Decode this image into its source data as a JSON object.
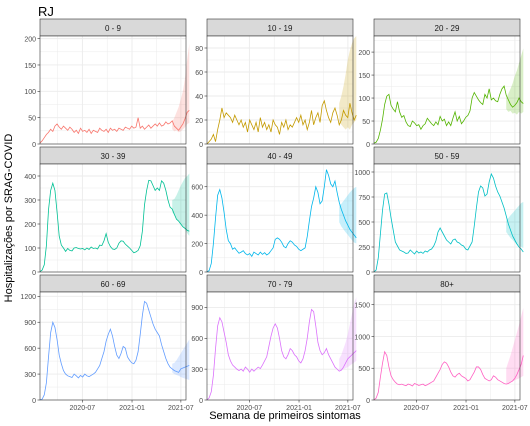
{
  "title": "RJ",
  "ylabel": "Hospitalizações por SRAG-COVID",
  "xlabel": "Semana de primeiros sintomas",
  "colors": {
    "panel_bg": "#ffffff",
    "panel_border": "#333333",
    "grid": "#ebebeb",
    "strip_bg": "#d9d9d9"
  },
  "chart_data": {
    "type": "line",
    "x_axis_ticks": [
      "2020-07",
      "2021-01",
      "2021-07"
    ],
    "x_range": [
      "2020-01-26",
      "2021-07-20"
    ],
    "nowcast_start": "2021-05-30",
    "panels": [
      {
        "label": "0 - 9",
        "color": "#F8766D",
        "ylim": [
          0,
          205
        ],
        "yticks": [
          0,
          50,
          100,
          150,
          200
        ],
        "values": [
          2,
          6,
          12,
          18,
          22,
          28,
          24,
          34,
          38,
          32,
          28,
          34,
          30,
          26,
          32,
          28,
          22,
          26,
          20,
          30,
          24,
          26,
          22,
          28,
          20,
          26,
          24,
          22,
          30,
          26,
          24,
          28,
          22,
          30,
          26,
          28,
          24,
          30,
          28,
          26,
          32,
          30,
          28,
          34,
          30,
          32,
          50,
          30,
          34,
          28,
          32,
          36,
          30,
          34,
          38,
          34,
          40,
          34,
          36,
          42,
          38,
          40,
          44,
          34,
          30,
          26,
          32,
          38,
          48,
          60,
          64
        ],
        "ci_lower": [
          28,
          24,
          26,
          22,
          24,
          28,
          32,
          38,
          40
        ],
        "ci_upper": [
          42,
          50,
          60,
          70,
          85,
          100,
          125,
          160,
          190
        ]
      },
      {
        "label": "10 - 19",
        "color": "#C49A00",
        "ylim": [
          0,
          90
        ],
        "yticks": [
          0,
          20,
          40,
          60,
          80
        ],
        "values": [
          0,
          2,
          4,
          8,
          2,
          12,
          20,
          30,
          22,
          26,
          24,
          22,
          18,
          24,
          20,
          16,
          20,
          14,
          18,
          10,
          20,
          16,
          12,
          18,
          10,
          22,
          14,
          18,
          12,
          16,
          10,
          20,
          16,
          14,
          8,
          18,
          14,
          20,
          12,
          16,
          14,
          18,
          22,
          18,
          24,
          16,
          20,
          12,
          18,
          28,
          16,
          22,
          26,
          18,
          32,
          36,
          28,
          22,
          18,
          26,
          30,
          24,
          16,
          20,
          28,
          24,
          22,
          34,
          26,
          20,
          24
        ],
        "ci_lower": [
          18,
          16,
          14,
          12,
          14,
          12,
          16,
          18,
          20
        ],
        "ci_upper": [
          34,
          40,
          48,
          58,
          70,
          78,
          84,
          88,
          90
        ]
      },
      {
        "label": "20 - 29",
        "color": "#53B400",
        "ylim": [
          0,
          235
        ],
        "yticks": [
          0,
          50,
          100,
          150,
          200
        ],
        "values": [
          2,
          4,
          12,
          30,
          54,
          86,
          104,
          108,
          84,
          76,
          70,
          92,
          70,
          58,
          62,
          48,
          40,
          38,
          50,
          46,
          40,
          42,
          32,
          40,
          44,
          56,
          50,
          44,
          40,
          48,
          42,
          60,
          50,
          54,
          40,
          48,
          40,
          56,
          70,
          50,
          60,
          44,
          50,
          58,
          62,
          72,
          100,
          112,
          104,
          96,
          90,
          86,
          108,
          100,
          120,
          96,
          100,
          94,
          92,
          108,
          120,
          126,
          106,
          96,
          86,
          80,
          84,
          90,
          100,
          92,
          88
        ],
        "ci_lower": [
          76,
          70,
          72,
          66,
          68,
          64,
          70,
          66,
          70
        ],
        "ci_upper": [
          100,
          110,
          120,
          132,
          148,
          160,
          176,
          192,
          208
        ]
      },
      {
        "label": "30 - 39",
        "color": "#00C094",
        "ylim": [
          0,
          450
        ],
        "yticks": [
          0,
          100,
          200,
          300,
          400
        ],
        "values": [
          2,
          8,
          30,
          110,
          260,
          340,
          370,
          340,
          250,
          150,
          112,
          100,
          86,
          98,
          90,
          88,
          100,
          102,
          98,
          96,
          98,
          92,
          100,
          94,
          104,
          98,
          100,
          96,
          112,
          110,
          130,
          160,
          124,
          106,
          96,
          94,
          100,
          120,
          130,
          128,
          116,
          108,
          100,
          90,
          80,
          84,
          90,
          110,
          170,
          280,
          340,
          382,
          380,
          360,
          340,
          350,
          340,
          380,
          370,
          340,
          300,
          270,
          262,
          240,
          220,
          212,
          200,
          188,
          182,
          174,
          170
        ],
        "ci_lower": [
          250,
          236,
          224,
          210,
          200,
          188,
          176,
          162,
          150
        ],
        "ci_upper": [
          300,
          304,
          320,
          340,
          360,
          376,
          392,
          400,
          410
        ]
      },
      {
        "label": "40 - 49",
        "color": "#00B6EB",
        "ylim": [
          0,
          760
        ],
        "yticks": [
          0,
          200,
          400,
          600
        ],
        "values": [
          2,
          10,
          60,
          200,
          380,
          540,
          580,
          520,
          420,
          300,
          220,
          200,
          160,
          170,
          150,
          132,
          140,
          150,
          130,
          120,
          130,
          110,
          140,
          130,
          120,
          140,
          124,
          136,
          120,
          130,
          150,
          170,
          230,
          240,
          230,
          210,
          180,
          170,
          200,
          220,
          210,
          190,
          180,
          160,
          150,
          160,
          170,
          250,
          360,
          460,
          520,
          600,
          560,
          480,
          500,
          600,
          720,
          680,
          620,
          600,
          640,
          560,
          490,
          440,
          400,
          360,
          330,
          300,
          280,
          260,
          240
        ],
        "ci_lower": [
          350,
          320,
          300,
          280,
          262,
          242,
          224,
          208,
          200
        ],
        "ci_upper": [
          470,
          480,
          500,
          520,
          540,
          560,
          576,
          590,
          600
        ]
      },
      {
        "label": "50 - 59",
        "color": "#00BFC4",
        "ylim": [
          0,
          1080
        ],
        "yticks": [
          0,
          250,
          500,
          750,
          1000
        ],
        "values": [
          2,
          20,
          140,
          380,
          620,
          780,
          790,
          680,
          540,
          420,
          300,
          260,
          220,
          210,
          200,
          186,
          190,
          220,
          200,
          180,
          210,
          190,
          200,
          186,
          210,
          200,
          220,
          230,
          260,
          310,
          400,
          440,
          400,
          360,
          320,
          300,
          280,
          320,
          330,
          300,
          290,
          270,
          260,
          230,
          220,
          260,
          300,
          460,
          640,
          800,
          860,
          840,
          760,
          780,
          900,
          980,
          940,
          860,
          800,
          760,
          700,
          640,
          560,
          480,
          420,
          360,
          320,
          280,
          250,
          230,
          200
        ],
        "ci_lower": [
          400,
          370,
          340,
          320,
          296,
          276,
          262,
          250,
          240
        ],
        "ci_upper": [
          520,
          540,
          566,
          590,
          614,
          640,
          664,
          690,
          700
        ]
      },
      {
        "label": "60 - 69",
        "color": "#619CFF",
        "ylim": [
          0,
          1250
        ],
        "yticks": [
          0,
          300,
          600,
          900,
          1200
        ],
        "values": [
          2,
          10,
          60,
          200,
          500,
          780,
          900,
          840,
          700,
          520,
          420,
          340,
          300,
          280,
          270,
          260,
          300,
          280,
          256,
          284,
          266,
          300,
          280,
          270,
          286,
          300,
          320,
          360,
          400,
          480,
          560,
          680,
          760,
          820,
          740,
          620,
          520,
          480,
          540,
          620,
          600,
          500,
          460,
          430,
          420,
          460,
          560,
          760,
          980,
          1140,
          1120,
          1040,
          960,
          880,
          820,
          780,
          740,
          640,
          560,
          480,
          420,
          380,
          360,
          340,
          330,
          320,
          360,
          370,
          380,
          390,
          400
        ],
        "ci_lower": [
          320,
          300,
          290,
          280,
          266,
          256,
          248,
          240,
          232
        ],
        "ci_upper": [
          420,
          430,
          460,
          500,
          540,
          580,
          620,
          660,
          700
        ]
      },
      {
        "label": "70 - 79",
        "color": "#DB72FB",
        "ylim": [
          0,
          1050
        ],
        "yticks": [
          0,
          300,
          600,
          900
        ],
        "values": [
          2,
          20,
          80,
          240,
          500,
          720,
          800,
          760,
          660,
          560,
          440,
          380,
          340,
          320,
          300,
          286,
          300,
          280,
          320,
          300,
          270,
          300,
          280,
          300,
          320,
          306,
          340,
          380,
          420,
          520,
          620,
          700,
          740,
          700,
          600,
          480,
          420,
          400,
          440,
          500,
          480,
          440,
          420,
          380,
          360,
          400,
          480,
          600,
          760,
          880,
          860,
          720,
          560,
          480,
          440,
          460,
          500,
          440,
          400,
          360,
          320,
          300,
          280,
          290,
          320,
          360,
          400,
          420,
          440,
          460,
          480
        ],
        "ci_lower": [
          280,
          290,
          300,
          310,
          320,
          336,
          350,
          364,
          380
        ],
        "ci_upper": [
          400,
          440,
          500,
          560,
          640,
          740,
          840,
          940,
          1000
        ]
      },
      {
        "label": "80+",
        "color": "#FF61C3",
        "ylim": [
          0,
          1700
        ],
        "yticks": [
          0,
          500,
          1000,
          1500
        ],
        "values": [
          2,
          30,
          120,
          360,
          580,
          760,
          700,
          520,
          380,
          320,
          280,
          250,
          240,
          250,
          236,
          226,
          250,
          240,
          220,
          260,
          246,
          230,
          240,
          250,
          226,
          240,
          260,
          280,
          300,
          360,
          420,
          480,
          560,
          600,
          580,
          520,
          440,
          380,
          360,
          400,
          420,
          380,
          360,
          340,
          300,
          320,
          380,
          440,
          520,
          520,
          480,
          400,
          340,
          320,
          300,
          320,
          380,
          360,
          320,
          300,
          280,
          260,
          250,
          260,
          280,
          300,
          340,
          400,
          480,
          560,
          700
        ],
        "ci_lower": [
          250,
          266,
          280,
          296,
          310,
          326,
          340,
          360,
          380
        ],
        "ci_upper": [
          500,
          600,
          700,
          820,
          940,
          1060,
          1180,
          1320,
          1450
        ]
      }
    ]
  }
}
